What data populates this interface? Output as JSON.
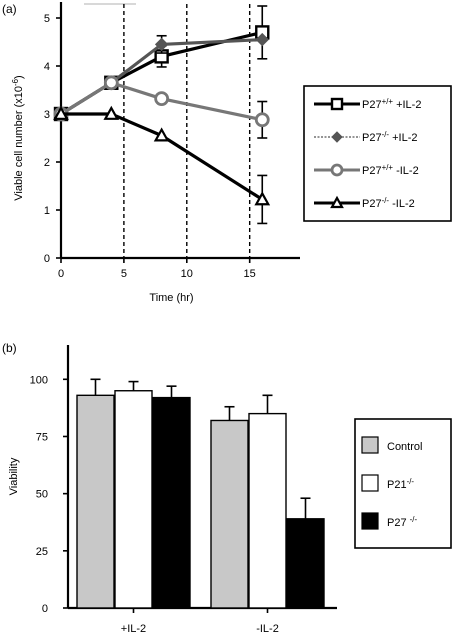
{
  "chart_data": [
    {
      "panel_label": "(a)",
      "type": "line",
      "xlabel": "Time (hr)",
      "ylabel_main": "Viable cell number (x10",
      "ylabel_exp": "-6",
      "ylabel_close": ")",
      "xlim": [
        0,
        19
      ],
      "ylim": [
        0,
        5
      ],
      "xticks": [
        "0",
        "5",
        "10",
        "15"
      ],
      "yticks": [
        "0",
        "1",
        "2",
        "3",
        "4",
        "5"
      ],
      "vlines": [
        5,
        10,
        15
      ],
      "legend_position": "right",
      "series": [
        {
          "name_main": "P27",
          "name_sup": "+/+",
          "name_tail": " +IL-2",
          "marker": "square",
          "color": "#000000",
          "dash": "",
          "width": 3.2,
          "x": [
            0,
            4,
            8,
            16
          ],
          "y": [
            3.0,
            3.65,
            4.2,
            4.7
          ],
          "err": [
            0,
            0,
            0.22,
            0.55
          ]
        },
        {
          "name_main": "P27",
          "name_sup": "-/-",
          "name_tail": " +IL-2",
          "marker": "diamond",
          "color": "#555555",
          "dash": "",
          "width": 3.2,
          "x": [
            0,
            4,
            8,
            16
          ],
          "y": [
            3.0,
            3.65,
            4.45,
            4.55
          ],
          "err": [
            0,
            0,
            0.18,
            0
          ]
        },
        {
          "name_main": "P27",
          "name_sup": "+/+",
          "name_tail": " -IL-2",
          "marker": "circle",
          "color": "#777777",
          "dash": "",
          "width": 3.2,
          "x": [
            0,
            4,
            8,
            16
          ],
          "y": [
            3.0,
            3.65,
            3.32,
            2.88
          ],
          "err": [
            0,
            0,
            0,
            0.38
          ]
        },
        {
          "name_main": "P27",
          "name_sup": "-/-",
          "name_tail": " -IL-2",
          "marker": "triangle",
          "color": "#000000",
          "dash": "",
          "width": 3.2,
          "x": [
            0,
            4,
            8,
            16
          ],
          "y": [
            3.0,
            3.0,
            2.55,
            1.22
          ],
          "err": [
            0,
            0,
            0,
            0.5
          ]
        }
      ],
      "legend_dash_second": true
    },
    {
      "panel_label": "(b)",
      "type": "bar",
      "ylabel": "Viability",
      "ylim": [
        0,
        115
      ],
      "yticks": [
        "0",
        "25",
        "50",
        "75",
        "100"
      ],
      "categories": [
        "+IL-2",
        "-IL-2"
      ],
      "legend_position": "right",
      "series": [
        {
          "name_main": "Control",
          "name_sup": "",
          "color": "#c8c8c8",
          "values": [
            93,
            82
          ],
          "err": [
            7,
            6
          ]
        },
        {
          "name_main": "P21",
          "name_sup": "-/-",
          "color": "#ffffff",
          "values": [
            95,
            85
          ],
          "err": [
            4,
            8
          ]
        },
        {
          "name_main": "P27 ",
          "name_sup": "-/-",
          "color": "#000000",
          "values": [
            92,
            39
          ],
          "err": [
            5,
            9
          ]
        }
      ]
    }
  ]
}
